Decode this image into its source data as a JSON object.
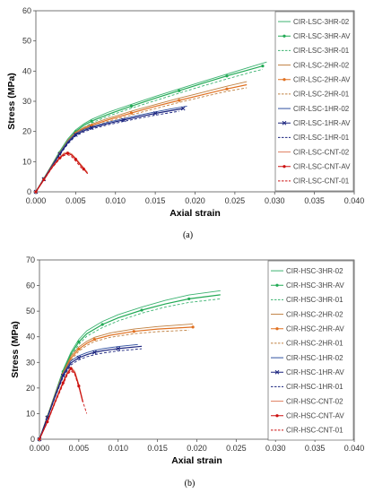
{
  "chart_data": [
    {
      "type": "line",
      "caption": "(a)",
      "xlabel": "Axial strain",
      "ylabel": "Stress (MPa)",
      "xlim": [
        0,
        0.04
      ],
      "ylim": [
        0,
        60
      ],
      "xticks": [
        "0.000",
        "0.005",
        "0.010",
        "0.015",
        "0.020",
        "0.025",
        "0.030",
        "0.035",
        "0.040"
      ],
      "yticks": [
        "0",
        "10",
        "20",
        "30",
        "40",
        "50",
        "60"
      ],
      "grid": false,
      "legend": "top-right",
      "series": [
        {
          "name": "CIR-LSC-3HR-02",
          "color": "#3cb371",
          "dash": "solid",
          "marker": "none",
          "x": [
            0,
            0.001,
            0.002,
            0.003,
            0.004,
            0.005,
            0.006,
            0.007,
            0.009,
            0.012,
            0.015,
            0.018,
            0.021,
            0.024,
            0.027,
            0.029
          ],
          "y": [
            0,
            4.5,
            9,
            13.5,
            17.5,
            20.5,
            22.5,
            24,
            26.3,
            29,
            31.6,
            34.1,
            36.6,
            39,
            41.4,
            43
          ]
        },
        {
          "name": "CIR-LSC-3HR-AV",
          "color": "#22aa55",
          "dash": "solid",
          "marker": "dot",
          "x": [
            0,
            0.001,
            0.002,
            0.003,
            0.004,
            0.005,
            0.006,
            0.007,
            0.009,
            0.012,
            0.015,
            0.018,
            0.021,
            0.024,
            0.027,
            0.0285
          ],
          "y": [
            0,
            4.4,
            8.8,
            13,
            17,
            20,
            22,
            23.4,
            25.6,
            28.4,
            31,
            33.5,
            36,
            38.4,
            40.6,
            41.7
          ]
        },
        {
          "name": "CIR-LSC-3HR-01",
          "color": "#3cb371",
          "dash": "dashed",
          "marker": "none",
          "x": [
            0,
            0.001,
            0.002,
            0.003,
            0.004,
            0.005,
            0.006,
            0.007,
            0.009,
            0.012,
            0.015,
            0.018,
            0.021,
            0.024,
            0.027,
            0.0285
          ],
          "y": [
            0,
            4.3,
            8.5,
            12.6,
            16.5,
            19.4,
            21.3,
            22.8,
            25,
            27.7,
            30.2,
            32.7,
            35.1,
            37.4,
            39.6,
            40.6
          ]
        },
        {
          "name": "CIR-LSC-2HR-02",
          "color": "#c08040",
          "dash": "solid",
          "marker": "none",
          "x": [
            0,
            0.001,
            0.002,
            0.003,
            0.004,
            0.005,
            0.006,
            0.007,
            0.009,
            0.012,
            0.015,
            0.018,
            0.021,
            0.024,
            0.0265
          ],
          "y": [
            0,
            4.4,
            8.8,
            13,
            17,
            19.8,
            21.3,
            22.4,
            24.3,
            26.7,
            28.9,
            31,
            33,
            35,
            36.5
          ]
        },
        {
          "name": "CIR-LSC-2HR-AV",
          "color": "#e07020",
          "dash": "solid",
          "marker": "dot",
          "x": [
            0,
            0.001,
            0.002,
            0.003,
            0.004,
            0.005,
            0.006,
            0.007,
            0.009,
            0.012,
            0.015,
            0.018,
            0.021,
            0.024,
            0.0265
          ],
          "y": [
            0,
            4.3,
            8.6,
            12.7,
            16.6,
            19.4,
            20.9,
            22,
            23.8,
            26.1,
            28.3,
            30.3,
            32.2,
            34.1,
            35.5
          ]
        },
        {
          "name": "CIR-LSC-2HR-01",
          "color": "#c08040",
          "dash": "dashed",
          "marker": "none",
          "x": [
            0,
            0.001,
            0.002,
            0.003,
            0.004,
            0.005,
            0.006,
            0.007,
            0.009,
            0.012,
            0.015,
            0.018,
            0.021,
            0.024,
            0.0265
          ],
          "y": [
            0,
            4.2,
            8.4,
            12.4,
            16.2,
            19,
            20.5,
            21.5,
            23.3,
            25.5,
            27.6,
            29.6,
            31.5,
            33.3,
            34.5
          ]
        },
        {
          "name": "CIR-LSC-1HR-02",
          "color": "#3050a0",
          "dash": "solid",
          "marker": "none",
          "x": [
            0,
            0.001,
            0.002,
            0.003,
            0.004,
            0.005,
            0.006,
            0.007,
            0.009,
            0.011,
            0.013,
            0.015,
            0.017,
            0.019
          ],
          "y": [
            0,
            4.3,
            8.6,
            12.8,
            16.6,
            19.3,
            20.6,
            21.6,
            23,
            24.2,
            25.4,
            26.5,
            27.5,
            28.4
          ]
        },
        {
          "name": "CIR-LSC-1HR-AV",
          "color": "#1a237e",
          "dash": "solid",
          "marker": "x",
          "x": [
            0,
            0.001,
            0.002,
            0.003,
            0.004,
            0.005,
            0.006,
            0.007,
            0.009,
            0.011,
            0.013,
            0.015,
            0.017,
            0.0185
          ],
          "y": [
            0,
            4.2,
            8.4,
            12.5,
            16.2,
            18.9,
            20.2,
            21.2,
            22.6,
            23.8,
            24.9,
            26,
            26.9,
            27.6
          ]
        },
        {
          "name": "CIR-LSC-1HR-01",
          "color": "#1a237e",
          "dash": "dashed",
          "marker": "none",
          "x": [
            0,
            0.001,
            0.002,
            0.003,
            0.004,
            0.005,
            0.006,
            0.007,
            0.009,
            0.011,
            0.013,
            0.015,
            0.017,
            0.018
          ],
          "y": [
            0,
            4.1,
            8.2,
            12.2,
            15.8,
            18.5,
            19.8,
            20.8,
            22.2,
            23.3,
            24.4,
            25.4,
            26.3,
            26.7
          ]
        },
        {
          "name": "CIR-LSC-CNT-02",
          "color": "#e08060",
          "dash": "solid",
          "marker": "none",
          "x": [
            0,
            0.001,
            0.002,
            0.003,
            0.0035,
            0.004,
            0.0045,
            0.005,
            0.0055,
            0.006,
            0.0065
          ],
          "y": [
            0,
            4,
            8.2,
            11.5,
            12.8,
            13.2,
            12.6,
            11.2,
            9.6,
            8,
            6.4
          ]
        },
        {
          "name": "CIR-LSC-CNT-AV",
          "color": "#cc1111",
          "dash": "solid",
          "marker": "dot",
          "x": [
            0,
            0.001,
            0.002,
            0.003,
            0.0035,
            0.004,
            0.0045,
            0.005,
            0.0055,
            0.006,
            0.0065
          ],
          "y": [
            0,
            4,
            8,
            11.2,
            12.4,
            12.8,
            12.2,
            10.8,
            9.2,
            7.6,
            6
          ]
        },
        {
          "name": "CIR-LSC-CNT-01",
          "color": "#cc1111",
          "dash": "dashed",
          "marker": "none",
          "x": [
            0,
            0.001,
            0.002,
            0.003,
            0.0035,
            0.004,
            0.0045,
            0.005,
            0.0055,
            0.006
          ],
          "y": [
            0,
            3.9,
            7.8,
            10.9,
            12,
            12.3,
            11.6,
            10.2,
            8.6,
            7
          ]
        }
      ]
    },
    {
      "type": "line",
      "caption": "(b)",
      "xlabel": "Axial strain",
      "ylabel": "Stress (MPa)",
      "xlim": [
        0,
        0.04
      ],
      "ylim": [
        0,
        70
      ],
      "xticks": [
        "0.000",
        "0.005",
        "0.010",
        "0.015",
        "0.020",
        "0.025",
        "0.030",
        "0.035",
        "0.040"
      ],
      "yticks": [
        "0",
        "10",
        "20",
        "30",
        "40",
        "50",
        "60",
        "70"
      ],
      "grid": false,
      "legend": "top-right",
      "series": [
        {
          "name": "CIR-HSC-3HR-02",
          "color": "#3cb371",
          "dash": "solid",
          "marker": "none",
          "x": [
            0,
            0.001,
            0.002,
            0.003,
            0.004,
            0.005,
            0.006,
            0.008,
            0.01,
            0.013,
            0.016,
            0.019,
            0.023
          ],
          "y": [
            0,
            9,
            18,
            27,
            34,
            39,
            42.3,
            46,
            48.6,
            51.6,
            54.2,
            56.3,
            58
          ]
        },
        {
          "name": "CIR-HSC-3HR-AV",
          "color": "#22aa55",
          "dash": "solid",
          "marker": "dot",
          "x": [
            0,
            0.001,
            0.002,
            0.003,
            0.004,
            0.005,
            0.006,
            0.008,
            0.01,
            0.013,
            0.016,
            0.019,
            0.023
          ],
          "y": [
            0,
            8.8,
            17.6,
            26.4,
            33.2,
            38,
            41.2,
            44.8,
            47.4,
            50.4,
            52.8,
            54.8,
            56.4
          ]
        },
        {
          "name": "CIR-HSC-3HR-01",
          "color": "#3cb371",
          "dash": "dashed",
          "marker": "none",
          "x": [
            0,
            0.001,
            0.002,
            0.003,
            0.004,
            0.005,
            0.006,
            0.008,
            0.01,
            0.013,
            0.016,
            0.019,
            0.023
          ],
          "y": [
            0,
            8.6,
            17.2,
            25.8,
            32.4,
            37,
            40.2,
            43.6,
            46.2,
            49.2,
            51.6,
            53.4,
            54.8
          ]
        },
        {
          "name": "CIR-HSC-2HR-02",
          "color": "#c08040",
          "dash": "solid",
          "marker": "none",
          "x": [
            0,
            0.001,
            0.002,
            0.003,
            0.004,
            0.005,
            0.006,
            0.007,
            0.009,
            0.012,
            0.015,
            0.0195
          ],
          "y": [
            0,
            8.8,
            17.6,
            26,
            32.4,
            36,
            38.2,
            39.8,
            41.5,
            43,
            44,
            45
          ]
        },
        {
          "name": "CIR-HSC-2HR-AV",
          "color": "#e07020",
          "dash": "solid",
          "marker": "dot",
          "x": [
            0,
            0.001,
            0.002,
            0.003,
            0.004,
            0.005,
            0.006,
            0.007,
            0.009,
            0.012,
            0.015,
            0.0195
          ],
          "y": [
            0,
            8.6,
            17.2,
            25.4,
            31.6,
            35.2,
            37.4,
            39,
            40.6,
            42.1,
            43,
            43.8
          ]
        },
        {
          "name": "CIR-HSC-2HR-01",
          "color": "#c08040",
          "dash": "dashed",
          "marker": "none",
          "x": [
            0,
            0.001,
            0.002,
            0.003,
            0.004,
            0.005,
            0.006,
            0.007,
            0.009,
            0.012,
            0.015,
            0.019
          ],
          "y": [
            0,
            8.4,
            16.8,
            24.8,
            30.8,
            34.4,
            36.6,
            38.2,
            39.8,
            41.2,
            42,
            42.6
          ]
        },
        {
          "name": "CIR-HSC-1HR-02",
          "color": "#3050a0",
          "dash": "solid",
          "marker": "none",
          "x": [
            0,
            0.001,
            0.002,
            0.003,
            0.004,
            0.005,
            0.006,
            0.007,
            0.008,
            0.01,
            0.0125
          ],
          "y": [
            0,
            8.6,
            17.2,
            25.4,
            30.6,
            32.6,
            33.8,
            34.7,
            35.3,
            36.2,
            37
          ]
        },
        {
          "name": "CIR-HSC-1HR-AV",
          "color": "#1a237e",
          "dash": "solid",
          "marker": "x",
          "x": [
            0,
            0.001,
            0.002,
            0.003,
            0.004,
            0.005,
            0.006,
            0.007,
            0.008,
            0.01,
            0.013
          ],
          "y": [
            0,
            8.4,
            16.8,
            24.8,
            29.8,
            31.8,
            33,
            33.9,
            34.5,
            35.4,
            36.3
          ]
        },
        {
          "name": "CIR-HSC-1HR-01",
          "color": "#1a237e",
          "dash": "dashed",
          "marker": "none",
          "x": [
            0,
            0.001,
            0.002,
            0.003,
            0.004,
            0.005,
            0.006,
            0.007,
            0.008,
            0.01,
            0.013
          ],
          "y": [
            0,
            8.2,
            16.4,
            24.2,
            29,
            31,
            32.2,
            33,
            33.6,
            34.5,
            35.3
          ]
        },
        {
          "name": "CIR-HSC-CNT-02",
          "color": "#e08060",
          "dash": "solid",
          "marker": "none",
          "x": [
            0,
            0.001,
            0.002,
            0.003,
            0.0035,
            0.004,
            0.0045,
            0.005,
            0.0055
          ],
          "y": [
            0,
            7,
            15,
            22.5,
            26,
            28.2,
            26.5,
            21.5,
            15
          ]
        },
        {
          "name": "CIR-HSC-CNT-AV",
          "color": "#cc1111",
          "dash": "solid",
          "marker": "dot",
          "x": [
            0,
            0.001,
            0.002,
            0.003,
            0.0035,
            0.004,
            0.0045,
            0.005,
            0.0055
          ],
          "y": [
            0,
            6.8,
            14.6,
            22,
            25.4,
            27.6,
            25.8,
            20.8,
            14.6
          ]
        },
        {
          "name": "CIR-HSC-CNT-01",
          "color": "#cc1111",
          "dash": "dashed",
          "marker": "none",
          "x": [
            0,
            0.001,
            0.002,
            0.003,
            0.0035,
            0.004,
            0.0045,
            0.005,
            0.0055,
            0.006
          ],
          "y": [
            0,
            6.6,
            14.2,
            21.4,
            24.8,
            26.8,
            25.2,
            20.4,
            14.8,
            10
          ]
        }
      ]
    }
  ]
}
